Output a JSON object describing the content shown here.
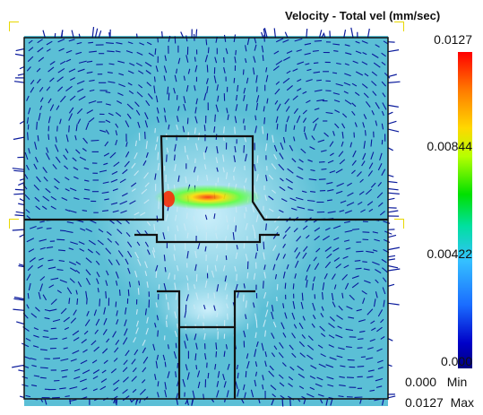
{
  "legend": {
    "title": "Velocity - Total vel (mm/sec)",
    "ticks": [
      "0.0127",
      "0.00844",
      "0.00422",
      "0.000"
    ],
    "min_value": "0.000",
    "min_label": "Min",
    "max_value": "0.0127",
    "max_label": "Max"
  },
  "colors": {
    "background_fluid": "#5bbfd6",
    "vector_dark": "#0a1a9c",
    "vector_light": "#c8e8f4",
    "hot": "#ff2000",
    "outline": "#111111",
    "marker": "#e8d800"
  }
}
